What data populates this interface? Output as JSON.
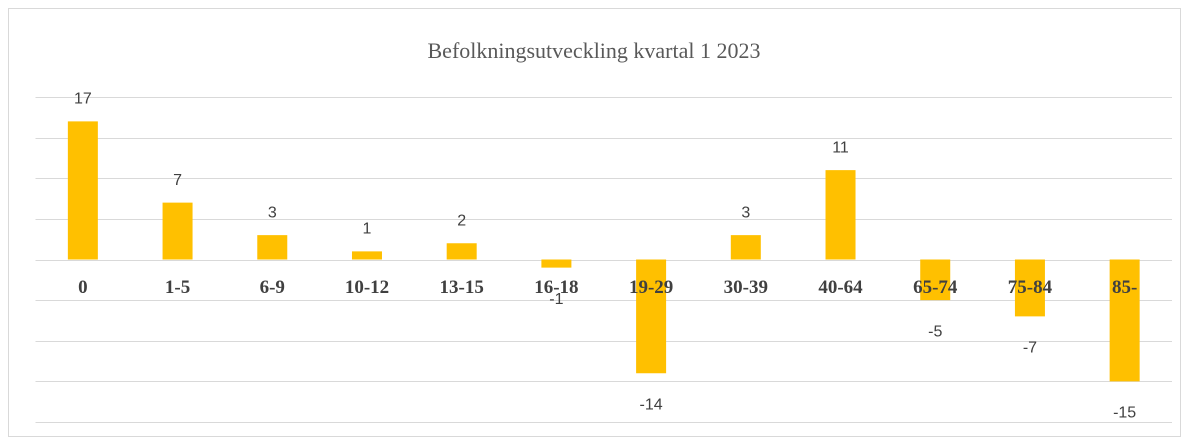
{
  "chart_data": {
    "type": "bar",
    "title": "Befolkningsutveckling kvartal 1 2023",
    "categories": [
      "0",
      "1-5",
      "6-9",
      "10-12",
      "13-15",
      "16-18",
      "19-29",
      "30-39",
      "40-64",
      "65-74",
      "75-84",
      "85-"
    ],
    "values": [
      17,
      7,
      3,
      1,
      2,
      -1,
      -14,
      3,
      11,
      -5,
      -7,
      -15
    ],
    "color": "#ffc000",
    "ylim": [
      -20,
      20
    ],
    "yticks": [
      -20,
      -15,
      -10,
      -5,
      0,
      5,
      10,
      15,
      20
    ],
    "grid": true
  }
}
